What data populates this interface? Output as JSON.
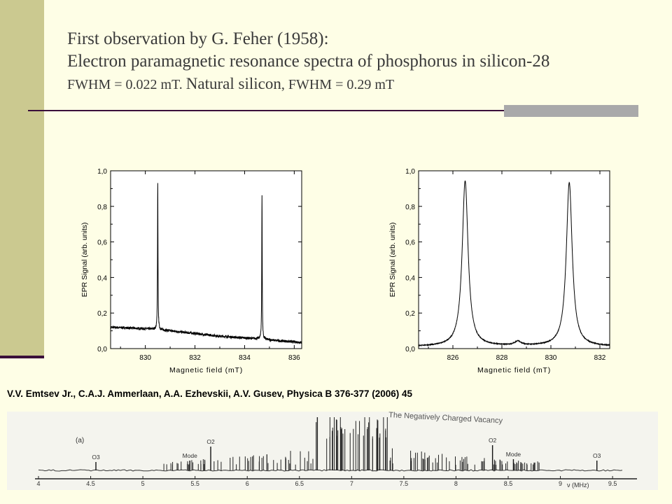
{
  "slide": {
    "title_line1": "First observation by G. Feher (1958):",
    "title_line2": "Electron paramagnetic resonance spectra of phosphorus in silicon-28",
    "title_line3_a": "FWHM = 0.022 mT. ",
    "title_line3_b": "Natural silicon",
    "title_line3_c": ", FWHM = 0.29 mT",
    "citation": "V.V. Emtsev Jr., C.A.J. Ammerlaan, A.A. Ezhevskii, A.V. Gusev, Physica B 376-377 (2006) 45"
  },
  "chart_data": [
    {
      "type": "line",
      "title": "",
      "xlabel": "Magnetic field (mT)",
      "ylabel": "EPR Signal (arb. units)",
      "xlim": [
        828.6,
        836.3
      ],
      "ylim": [
        0,
        1.0
      ],
      "xticks": [
        830,
        832,
        834,
        836
      ],
      "xtick_labels": [
        "830",
        "832",
        "834",
        "836"
      ],
      "yticks": [
        0,
        0.2,
        0.4,
        0.6,
        0.8,
        1.0
      ],
      "ytick_labels": [
        "0,0",
        "0,2",
        "0,4",
        "0,6",
        "0,8",
        "1,0"
      ],
      "baseline": [
        [
          828.6,
          0.12
        ],
        [
          829.5,
          0.115
        ],
        [
          830.3,
          0.11
        ],
        [
          831.0,
          0.1
        ],
        [
          832.0,
          0.085
        ],
        [
          833.0,
          0.07
        ],
        [
          834.0,
          0.06
        ],
        [
          834.6,
          0.055
        ],
        [
          835.3,
          0.045
        ],
        [
          836.3,
          0.035
        ]
      ],
      "peaks": [
        {
          "x": 830.5,
          "height": 0.82,
          "fwhm": 0.022
        },
        {
          "x": 834.7,
          "height": 0.81,
          "fwhm": 0.022
        }
      ],
      "grid": false
    },
    {
      "type": "line",
      "title": "",
      "xlabel": "Magnetic field (mT)",
      "ylabel": "EPR Signal (arb. units)",
      "xlim": [
        824.6,
        832.4
      ],
      "ylim": [
        0,
        1.0
      ],
      "xticks": [
        826,
        828,
        830,
        832
      ],
      "xtick_labels": [
        "826",
        "828",
        "830",
        "832"
      ],
      "yticks": [
        0,
        0.2,
        0.4,
        0.6,
        0.8,
        1.0
      ],
      "ytick_labels": [
        "0,0",
        "0,2",
        "0,4",
        "0,6",
        "0,8",
        "1,0"
      ],
      "baseline": [
        [
          824.6,
          0.012
        ],
        [
          828.6,
          0.014
        ],
        [
          832.4,
          0.012
        ]
      ],
      "peaks": [
        {
          "x": 826.5,
          "height": 0.93,
          "fwhm": 0.29
        },
        {
          "x": 828.65,
          "height": 0.022,
          "fwhm": 0.3
        },
        {
          "x": 830.75,
          "height": 0.92,
          "fwhm": 0.29
        }
      ],
      "grid": false
    }
  ],
  "bottom_spectrum": {
    "header": "The Negatively Charged Vacancy",
    "panel_label": "(a)",
    "annotations": [
      "O3",
      "Mode",
      "O2",
      "O2",
      "Mode",
      "O3"
    ],
    "axis_labels": [
      "4",
      "4.5",
      "5",
      "5.5",
      "6",
      "6.5",
      "7",
      "7.5",
      "8",
      "8.5",
      "9",
      "9.5"
    ],
    "axis_unit": "ν (MHz)"
  }
}
